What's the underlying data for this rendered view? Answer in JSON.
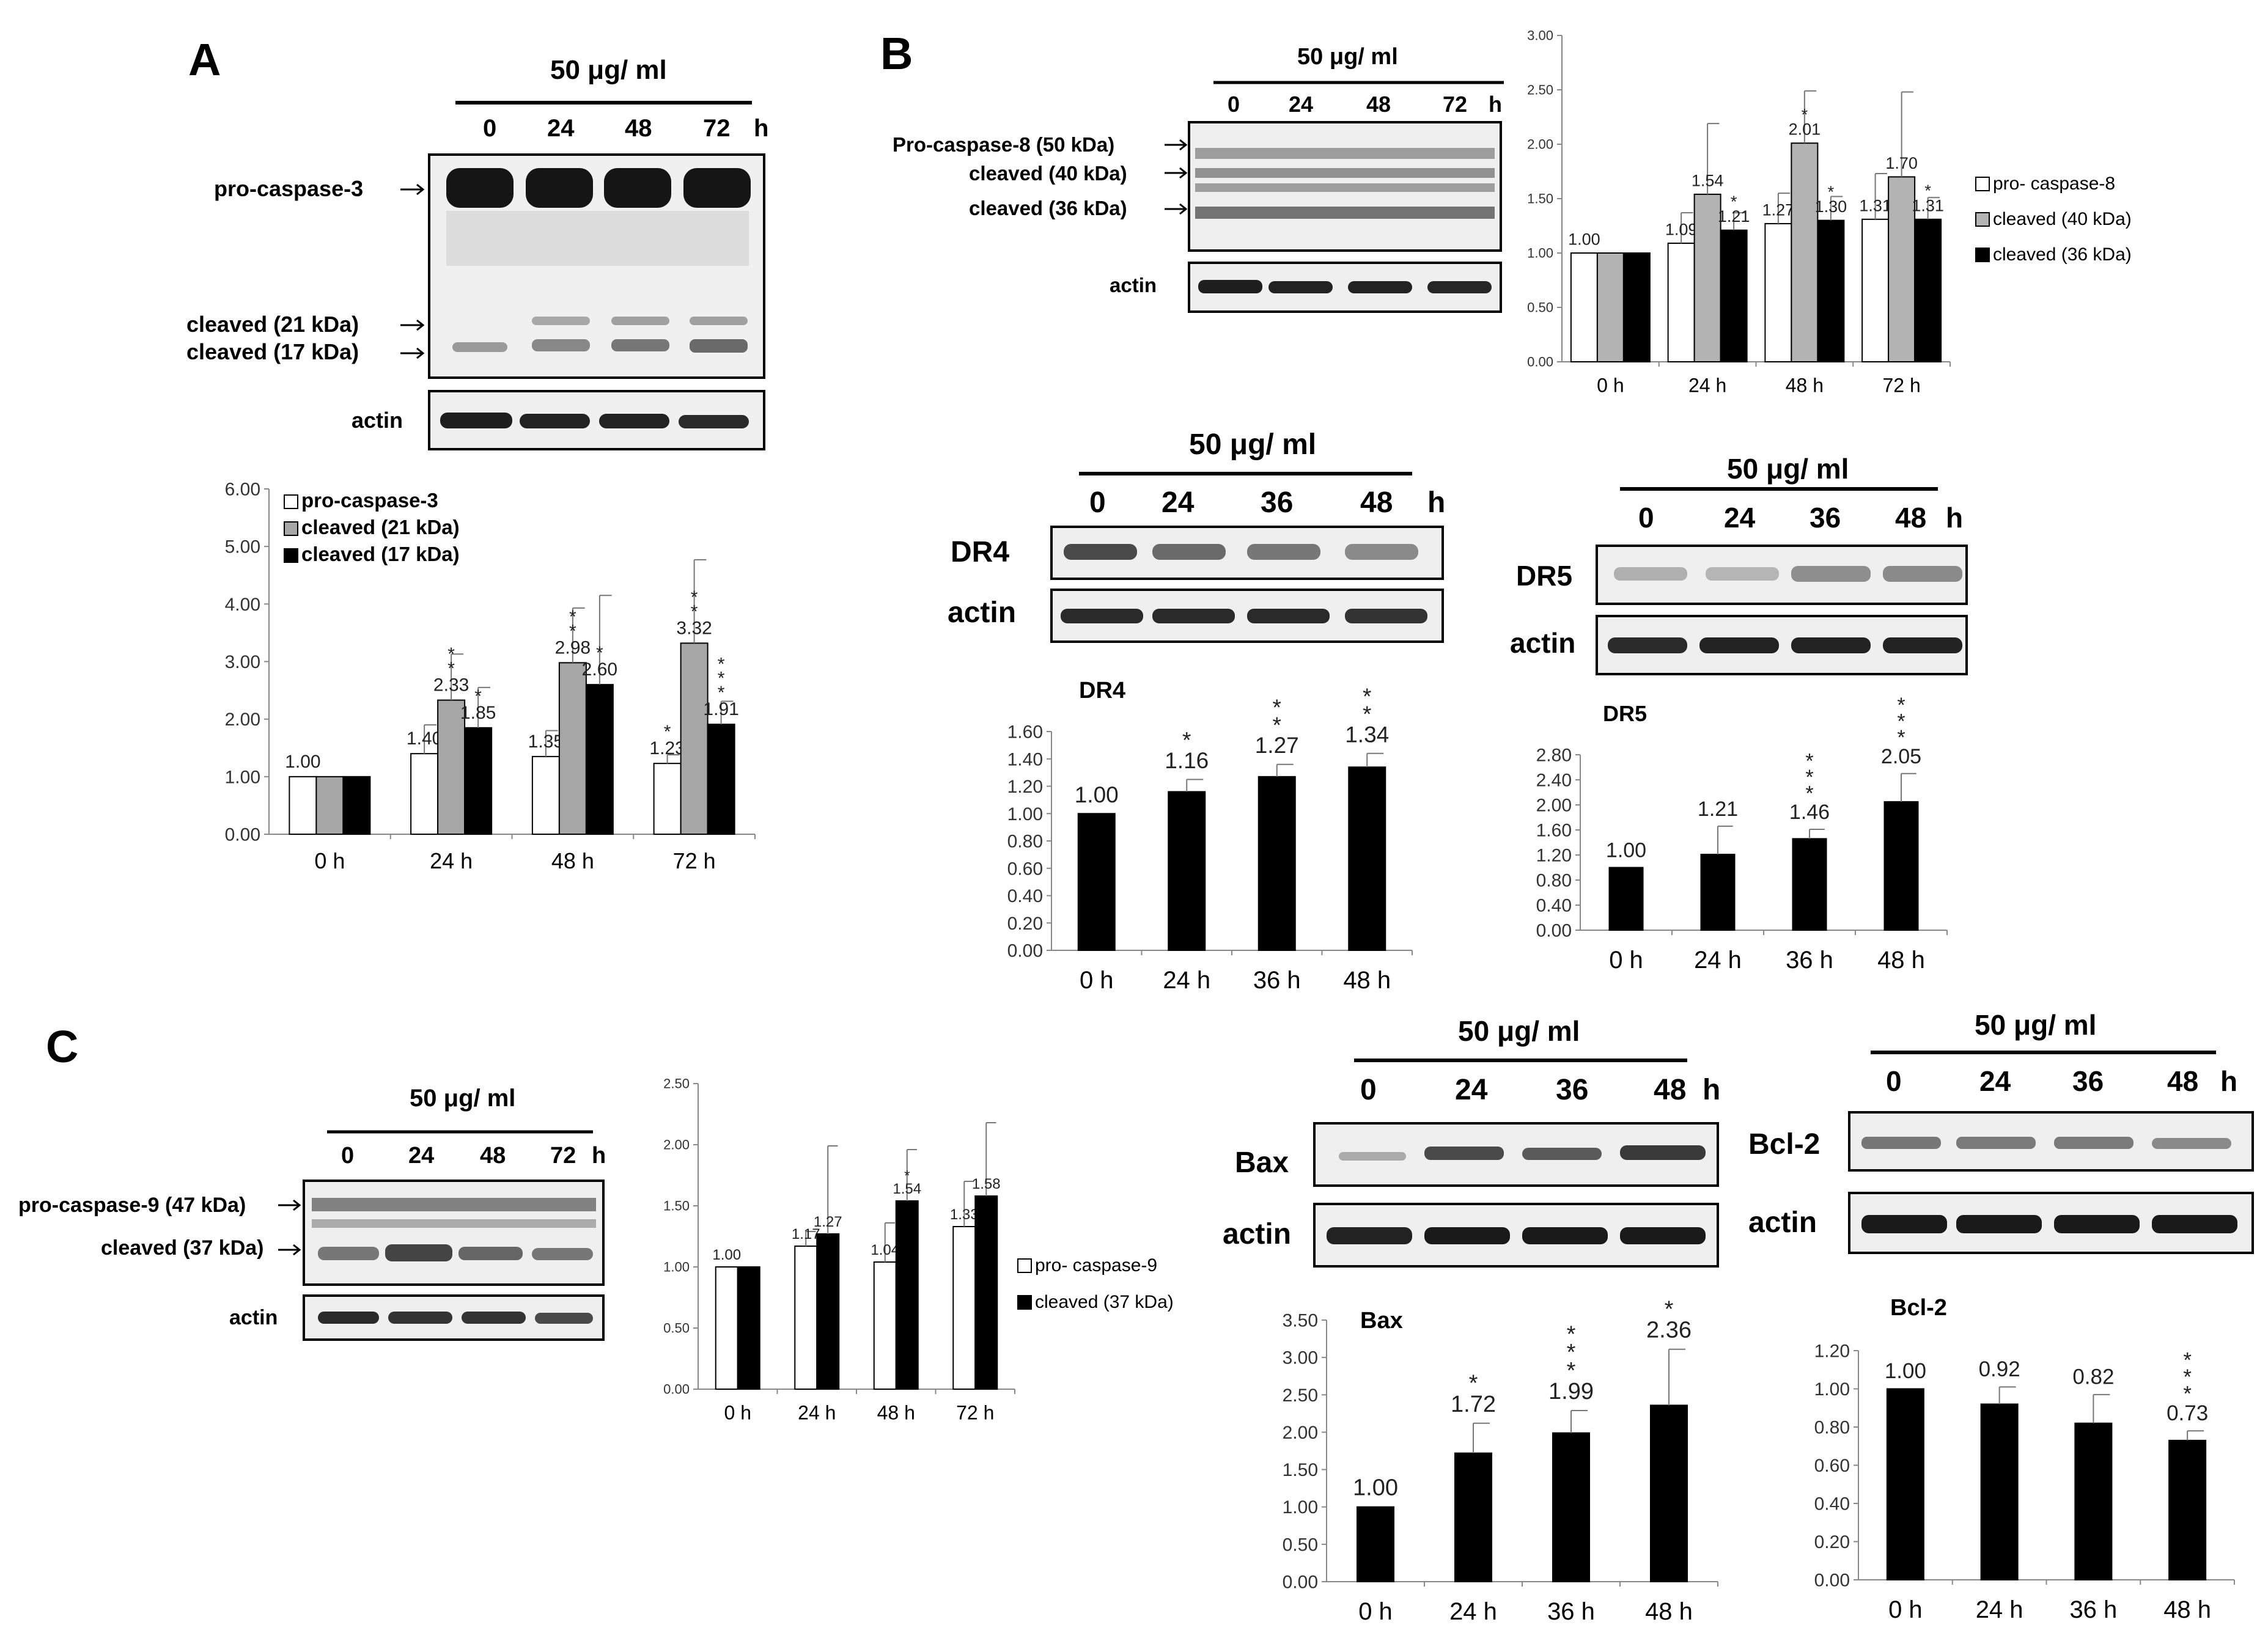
{
  "panels": {
    "A": {
      "letter": "A",
      "treatment": "50 μg/ ml",
      "time_labels": [
        "0",
        "24",
        "48",
        "72"
      ],
      "hour_unit": "h",
      "blot_labels": {
        "pro": "pro-caspase-3",
        "c21": "cleaved (21 kDa)",
        "c17": "cleaved (17 kDa)",
        "actin": "actin"
      }
    },
    "B": {
      "letter": "B",
      "treatment": "50 μg/ ml",
      "time_labels": [
        "0",
        "24",
        "48",
        "72"
      ],
      "hour_unit": "h",
      "blot_labels": {
        "pro": "Pro-caspase-8 (50 kDa)",
        "c40": "cleaved (40 kDa)",
        "c36": "cleaved (36 kDa)",
        "actin": "actin"
      }
    },
    "DR4": {
      "treatment": "50 μg/ ml",
      "time_labels": [
        "0",
        "24",
        "36",
        "48"
      ],
      "hour_unit": "h",
      "protein": "DR4",
      "actin": "actin"
    },
    "DR5": {
      "treatment": "50 μg/ ml",
      "time_labels": [
        "0",
        "24",
        "36",
        "48"
      ],
      "hour_unit": "h",
      "protein": "DR5",
      "actin": "actin"
    },
    "C": {
      "letter": "C",
      "treatment": "50 μg/ ml",
      "time_labels": [
        "0",
        "24",
        "48",
        "72"
      ],
      "hour_unit": "h",
      "blot_labels": {
        "pro": "pro-caspase-9 (47 kDa)",
        "c37": "cleaved (37 kDa)",
        "actin": "actin"
      }
    },
    "Bax": {
      "treatment": "50 μg/ ml",
      "time_labels": [
        "0",
        "24",
        "36",
        "48"
      ],
      "hour_unit": "h",
      "protein": "Bax",
      "actin": "actin"
    },
    "Bcl2": {
      "treatment": "50 μg/ ml",
      "time_labels": [
        "0",
        "24",
        "36",
        "48"
      ],
      "hour_unit": "h",
      "protein": "Bcl-2",
      "actin": "actin"
    }
  },
  "chart_data": [
    {
      "id": "casp3",
      "type": "bar",
      "categories": [
        "0 h",
        "24 h",
        "48 h",
        "72 h"
      ],
      "ylim": [
        0,
        6
      ],
      "yticks": [
        "0.00",
        "1.00",
        "2.00",
        "3.00",
        "4.00",
        "5.00",
        "6.00"
      ],
      "series": [
        {
          "name": "pro-caspase-3",
          "color": "#ffffff",
          "values": [
            1.0,
            1.4,
            1.35,
            1.23
          ],
          "labels": [
            "1.00",
            "1.40",
            "1.35",
            "1.23"
          ],
          "err": [
            0,
            0.5,
            0.45,
            0.15
          ],
          "stars": [
            "",
            "",
            "",
            "*"
          ]
        },
        {
          "name": "cleaved (21 kDa)",
          "color": "#a6a6a6",
          "values": [
            1.0,
            2.33,
            2.98,
            3.32
          ],
          "labels": [
            "",
            "2.33",
            "2.98",
            "3.32"
          ],
          "err": [
            0,
            0.8,
            0.95,
            1.45
          ],
          "stars": [
            "",
            "**",
            "**",
            "**"
          ]
        },
        {
          "name": "cleaved (17 kDa)",
          "color": "#000000",
          "values": [
            1.0,
            1.85,
            2.6,
            1.91
          ],
          "labels": [
            "",
            "1.85",
            "2.60",
            "1.91"
          ],
          "err": [
            0,
            0.7,
            1.55,
            0.4
          ],
          "stars": [
            "",
            "*",
            "*",
            "***"
          ]
        }
      ]
    },
    {
      "id": "casp8",
      "type": "bar",
      "categories": [
        "0 h",
        "24 h",
        "48 h",
        "72 h"
      ],
      "ylim": [
        0,
        3
      ],
      "yticks": [
        "0.00",
        "0.50",
        "1.00",
        "1.50",
        "2.00",
        "2.50",
        "3.00"
      ],
      "series": [
        {
          "name": "pro- caspase-8",
          "color": "#ffffff",
          "values": [
            1.0,
            1.09,
            1.27,
            1.31
          ],
          "labels": [
            "1.00",
            "1.09",
            "1.27",
            "1.31"
          ],
          "err": [
            0,
            0.28,
            0.28,
            0.42
          ],
          "stars": [
            "",
            "",
            "",
            ""
          ]
        },
        {
          "name": "cleaved (40 kDa)",
          "color": "#b3b3b3",
          "values": [
            1.0,
            1.54,
            2.01,
            1.7
          ],
          "labels": [
            "",
            "1.54",
            "2.01",
            "1.70"
          ],
          "err": [
            0,
            0.65,
            0.48,
            0.78
          ],
          "stars": [
            "",
            "",
            "*",
            ""
          ]
        },
        {
          "name": "cleaved (36 kDa)",
          "color": "#000000",
          "values": [
            1.0,
            1.21,
            1.3,
            1.31
          ],
          "labels": [
            "",
            "1.21",
            "1.30",
            "1.31"
          ],
          "err": [
            0,
            0.16,
            0.22,
            0.2
          ],
          "stars": [
            "",
            "*",
            "*",
            "*"
          ]
        }
      ]
    },
    {
      "id": "dr4",
      "type": "bar",
      "title": "DR4",
      "categories": [
        "0 h",
        "24 h",
        "36 h",
        "48 h"
      ],
      "ylim": [
        0,
        1.6
      ],
      "yticks": [
        "0.00",
        "0.20",
        "0.40",
        "0.60",
        "0.80",
        "1.00",
        "1.20",
        "1.40",
        "1.60"
      ],
      "series": [
        {
          "name": "DR4",
          "color": "#000000",
          "values": [
            1.0,
            1.16,
            1.27,
            1.34
          ],
          "labels": [
            "1.00",
            "1.16",
            "1.27",
            "1.34"
          ],
          "err": [
            0,
            0.09,
            0.09,
            0.1
          ],
          "stars": [
            "",
            "*",
            "**",
            "**"
          ]
        }
      ]
    },
    {
      "id": "dr5",
      "type": "bar",
      "title": "DR5",
      "categories": [
        "0 h",
        "24 h",
        "36 h",
        "48 h"
      ],
      "ylim": [
        0,
        2.8
      ],
      "yticks": [
        "0.00",
        "0.40",
        "0.80",
        "1.20",
        "1.60",
        "2.00",
        "2.40",
        "2.80"
      ],
      "series": [
        {
          "name": "DR5",
          "color": "#000000",
          "values": [
            1.0,
            1.21,
            1.46,
            2.05
          ],
          "labels": [
            "1.00",
            "1.21",
            "1.46",
            "2.05"
          ],
          "err": [
            0,
            0.45,
            0.15,
            0.45
          ],
          "stars": [
            "",
            "",
            "***",
            "***"
          ]
        }
      ]
    },
    {
      "id": "casp9",
      "type": "bar",
      "categories": [
        "0 h",
        "24 h",
        "48 h",
        "72 h"
      ],
      "ylim": [
        0,
        2.5
      ],
      "yticks": [
        "0.00",
        "0.50",
        "1.00",
        "1.50",
        "2.00",
        "2.50"
      ],
      "series": [
        {
          "name": "pro- caspase-9",
          "color": "#ffffff",
          "values": [
            1.0,
            1.17,
            1.04,
            1.33
          ],
          "labels": [
            "1.00",
            "1.17",
            "1.04",
            "1.33"
          ],
          "err": [
            0,
            0.12,
            0.32,
            0.37
          ],
          "stars": [
            "",
            "",
            "",
            ""
          ]
        },
        {
          "name": "cleaved (37 kDa)",
          "color": "#000000",
          "values": [
            1.0,
            1.27,
            1.54,
            1.58
          ],
          "labels": [
            "",
            "1.27",
            "1.54",
            "1.58"
          ],
          "err": [
            0,
            0.72,
            0.42,
            0.6
          ],
          "stars": [
            "",
            "",
            "*",
            ""
          ]
        }
      ]
    },
    {
      "id": "bax",
      "type": "bar",
      "title": "Bax",
      "categories": [
        "0 h",
        "24 h",
        "36 h",
        "48 h"
      ],
      "ylim": [
        0,
        3.5
      ],
      "yticks": [
        "0.00",
        "0.50",
        "1.00",
        "1.50",
        "2.00",
        "2.50",
        "3.00",
        "3.50"
      ],
      "series": [
        {
          "name": "Bax",
          "color": "#000000",
          "values": [
            1.0,
            1.72,
            1.99,
            2.36
          ],
          "labels": [
            "1.00",
            "1.72",
            "1.99",
            "2.36"
          ],
          "err": [
            0,
            0.4,
            0.3,
            0.75
          ],
          "stars": [
            "",
            "*",
            "***",
            "*"
          ]
        }
      ]
    },
    {
      "id": "bcl2",
      "type": "bar",
      "title": "Bcl-2",
      "categories": [
        "0 h",
        "24 h",
        "36 h",
        "48 h"
      ],
      "ylim": [
        0,
        1.2
      ],
      "yticks": [
        "0.00",
        "0.20",
        "0.40",
        "0.60",
        "0.80",
        "1.00",
        "1.20"
      ],
      "series": [
        {
          "name": "Bcl-2",
          "color": "#000000",
          "values": [
            1.0,
            0.92,
            0.82,
            0.73
          ],
          "labels": [
            "1.00",
            "0.92",
            "0.82",
            "0.73"
          ],
          "err": [
            0,
            0.09,
            0.15,
            0.05
          ],
          "stars": [
            "",
            "",
            "",
            "***"
          ]
        }
      ]
    }
  ]
}
